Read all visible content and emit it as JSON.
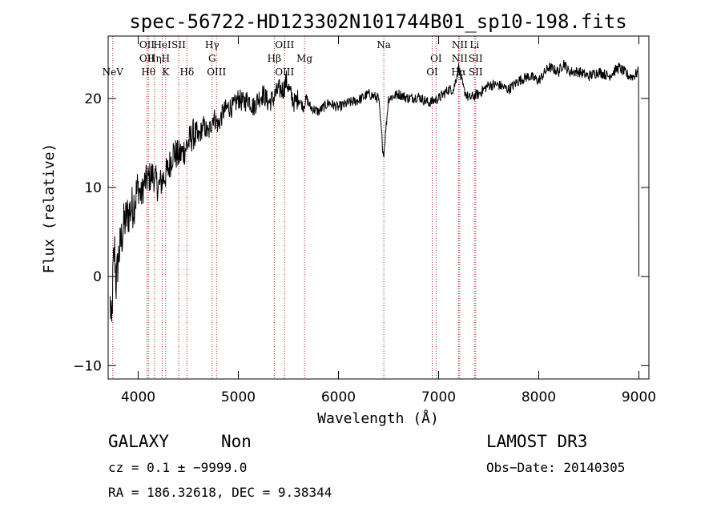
{
  "chart_data": {
    "type": "line",
    "title": "spec-56722-HD123302N101744B01_sp10-198.fits",
    "xlabel": "Wavelength (Å)",
    "ylabel": "Flux (relative)",
    "xlim": [
      3700,
      9100
    ],
    "ylim": [
      -11.5,
      27
    ],
    "x_ticks": [
      4000,
      5000,
      6000,
      7000,
      8000,
      9000
    ],
    "y_ticks": [
      -10,
      0,
      10,
      20
    ],
    "grid": false,
    "line_color": "#000000",
    "marker_color": "#b22222",
    "series": [
      {
        "x": [
          3720,
          3735,
          3750,
          3765,
          3780,
          3800,
          3830,
          3860,
          3900,
          3950,
          4000,
          4030,
          4060,
          4100,
          4150,
          4200,
          4250,
          4300,
          4350,
          4400,
          4450,
          4500,
          4550,
          4600,
          4650,
          4700,
          4750,
          4800,
          4850,
          4900,
          4950,
          5000,
          5050,
          5100,
          5150,
          5200,
          5250,
          5300,
          5350,
          5400,
          5450,
          5480,
          5520,
          5560,
          5600,
          5650,
          5680,
          5720,
          5800,
          5900,
          6000,
          6100,
          6200,
          6300,
          6400,
          6450,
          6500,
          6600,
          6700,
          6800,
          6900,
          7000,
          7100,
          7150,
          7200,
          7250,
          7300,
          7400,
          7500,
          7600,
          7700,
          7800,
          7900,
          8000,
          8100,
          8200,
          8250,
          8300,
          8400,
          8500,
          8600,
          8700,
          8800,
          8850,
          8900,
          8950,
          8990,
          9000
        ],
        "values": [
          -3,
          -6,
          1,
          3,
          -1,
          2,
          4,
          6,
          7,
          8,
          10,
          9,
          10.5,
          11,
          11.5,
          10,
          11,
          12,
          14,
          13.5,
          14,
          15,
          16,
          15.5,
          17,
          16,
          18,
          17,
          18.5,
          19,
          19,
          20,
          19.5,
          20,
          19,
          20,
          20.5,
          19.5,
          20,
          21,
          21,
          22,
          20.5,
          19.5,
          20,
          19,
          20,
          19,
          18.5,
          19.5,
          19,
          19.5,
          19.8,
          20.5,
          20,
          13.5,
          20,
          20.5,
          20,
          20.2,
          19.5,
          20,
          21,
          21,
          23.5,
          21,
          20,
          20.5,
          21.5,
          21.5,
          21,
          22,
          22.5,
          22,
          23.5,
          23,
          24,
          23,
          23,
          22.5,
          23,
          22.5,
          23.5,
          23,
          22.5,
          22.5,
          23,
          0
        ]
      }
    ],
    "line_markers": [
      {
        "label": "NeV",
        "x": 3746,
        "row": 3
      },
      {
        "label": "OII",
        "x": 4088,
        "row": 0
      },
      {
        "label": "OII",
        "x": 4088,
        "row": 1
      },
      {
        "label": "Hθ",
        "x": 4102,
        "row": 2
      },
      {
        "label": "Hη",
        "x": 4163,
        "row": 1
      },
      {
        "label": "HeI",
        "x": 4241,
        "row": 0
      },
      {
        "label": "H",
        "x": 4275,
        "row": 1
      },
      {
        "label": "K",
        "x": 4275,
        "row": 2
      },
      {
        "label": "SII",
        "x": 4404,
        "row": 0
      },
      {
        "label": "Hδ",
        "x": 4487,
        "row": 2
      },
      {
        "label": "Hγ",
        "x": 4738,
        "row": 0
      },
      {
        "label": "G",
        "x": 4738,
        "row": 1
      },
      {
        "label": "OIII",
        "x": 4782,
        "row": 2
      },
      {
        "label": "Hβ",
        "x": 5359,
        "row": 1
      },
      {
        "label": "OIII",
        "x": 5462,
        "row": 0
      },
      {
        "label": "OIII",
        "x": 5462,
        "row": 2
      },
      {
        "label": "Mg",
        "x": 5661,
        "row": 1
      },
      {
        "label": "Na",
        "x": 6453,
        "row": 0
      },
      {
        "label": "OI",
        "x": 6975,
        "row": 1
      },
      {
        "label": "OI",
        "x": 6936,
        "row": 2
      },
      {
        "label": "NII",
        "x": 7211,
        "row": 0
      },
      {
        "label": "NII",
        "x": 7211,
        "row": 1
      },
      {
        "label": "Hα",
        "x": 7200,
        "row": 2
      },
      {
        "label": "Li",
        "x": 7358,
        "row": 0
      },
      {
        "label": "SII",
        "x": 7370,
        "row": 1
      },
      {
        "label": "SII",
        "x": 7370,
        "row": 2
      }
    ]
  },
  "info": {
    "class": "GALAXY",
    "subclass": "Non",
    "survey": "LAMOST DR3",
    "cz": "cz = 0.1 ± −9999.0",
    "obs_date": "Obs−Date: 20140305",
    "coords": "RA = 186.32618, DEC =    9.38344"
  }
}
